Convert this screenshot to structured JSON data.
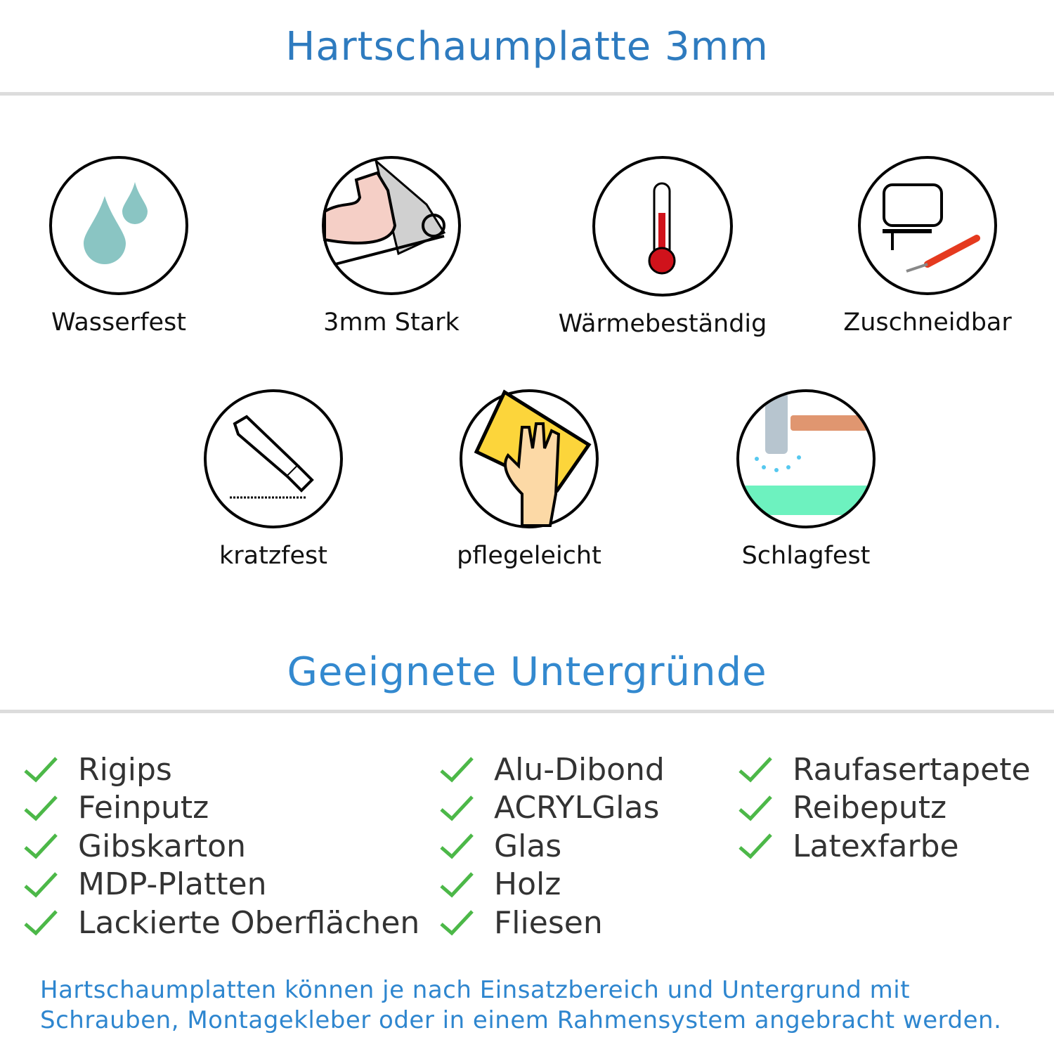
{
  "title": "Hartschaumplatte 3mm",
  "features": [
    {
      "label": "Wasserfest",
      "icon": "water-drops-icon"
    },
    {
      "label": "3mm Stark",
      "icon": "strong-arm-icon"
    },
    {
      "label": "Wärmebeständig",
      "icon": "thermometer-icon"
    },
    {
      "label": "Zuschneidbar",
      "icon": "jigsaw-cutter-icon"
    },
    {
      "label": "kratzfest",
      "icon": "utility-knife-icon"
    },
    {
      "label": "pflegeleicht",
      "icon": "cleaning-hand-icon"
    },
    {
      "label": "Schlagfest",
      "icon": "hammer-icon"
    }
  ],
  "surfaces_title": "Geeignete Untergründe",
  "surfaces": {
    "col1": [
      "Rigips",
      "Feinputz",
      "Gibskarton",
      "MDP-Platten",
      "Lackierte Oberflächen"
    ],
    "col2": [
      "Alu-Dibond",
      "ACRYLGlas",
      "Glas",
      "Holz",
      "Fliesen"
    ],
    "col3": [
      "Raufasertapete",
      "Reibeputz",
      "Latexfarbe"
    ]
  },
  "footer": {
    "line1": "Hartschaumplatten können je nach Einsatzbereich und Untergrund mit",
    "line2": "Schrauben, Montagekleber oder in einem Rahmensystem angebracht werden."
  },
  "colors": {
    "heading": "#2e7bbf",
    "check": "#4cb848",
    "footer": "#2e86cf"
  }
}
